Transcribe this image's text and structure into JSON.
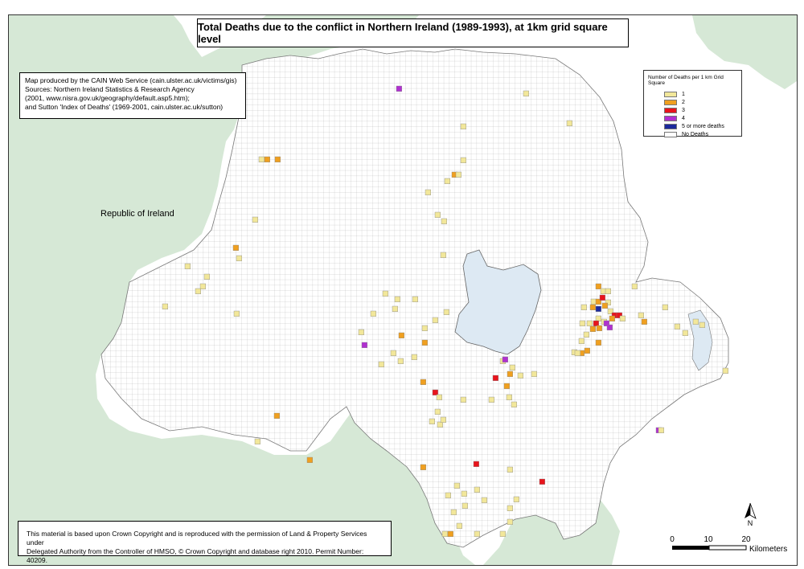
{
  "map": {
    "title": "Total Deaths due to the conflict in Northern Ireland (1989-1993), at 1km grid square level",
    "credits": [
      "Map produced by the CAIN Web Service (cain.ulster.ac.uk/victims/gis)",
      "Sources: Northern Ireland Statistics & Research Agency",
      "(2001, www.nisra.gov.uk/geography/default.asp5.htm);",
      "and Sutton 'Index of Deaths' (1969-2001, cain.ulster.ac.uk/sutton)"
    ],
    "copyright": [
      "This material is based upon Crown Copyright and is reproduced with the permission of Land & Property Services under",
      "Delegated Authority from the Controller of HMSO, © Crown Copyright and database right 2010. Permit Number: 40209."
    ],
    "region_label": "Republic of Ireland",
    "north_label": "N",
    "colors": {
      "land_other": "#d6e8d6",
      "water": "#dde9f3",
      "grid_line": "#9a9a9a",
      "d1": "#f2e79a",
      "d2": "#f0a020",
      "d3": "#e8141c",
      "d4": "#b030d0",
      "d5": "#1c2a9c"
    },
    "legend": {
      "title": "Number of Deaths per 1 km Grid Square",
      "items": [
        {
          "label": "1",
          "color": "#f2e79a"
        },
        {
          "label": "2",
          "color": "#f0a020"
        },
        {
          "label": "3",
          "color": "#e8141c"
        },
        {
          "label": "4",
          "color": "#b030d0"
        },
        {
          "label": "5 or more deaths",
          "color": "#1c2a9c"
        },
        {
          "label": "No Deaths",
          "color": "#ffffff"
        }
      ]
    },
    "scalebar": {
      "ticks": [
        "0",
        "10",
        "20"
      ],
      "unit": "Kilometers"
    }
  }
}
